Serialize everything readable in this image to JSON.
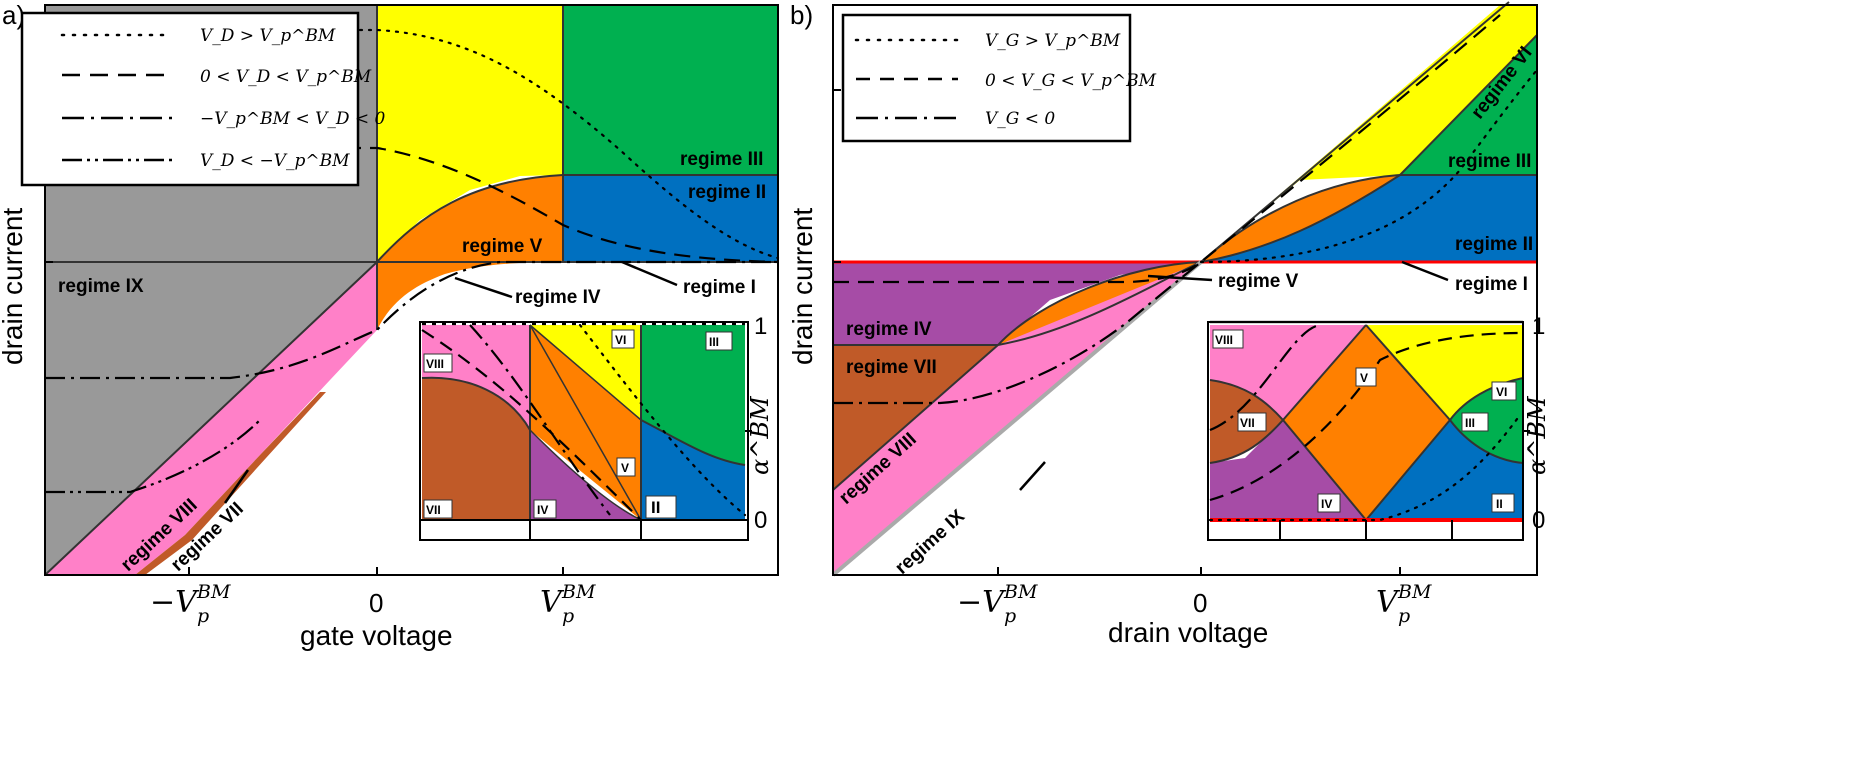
{
  "panels": {
    "a": {
      "letter": "a)",
      "xlabel": "gate voltage",
      "ylabel": "drain current",
      "xticks": [
        {
          "pre": "−V",
          "sub": "p",
          "sup": "BM"
        },
        {
          "pre": "0",
          "sub": "",
          "sup": ""
        },
        {
          "pre": "V",
          "sub": "p",
          "sup": "BM"
        }
      ],
      "legend": [
        {
          "style": "dotted",
          "label": "V_D > V_p^BM"
        },
        {
          "style": "dashed",
          "label": "0 < V_D < V_p^BM"
        },
        {
          "style": "dash-dot",
          "label": "−V_p^BM < V_D < 0"
        },
        {
          "style": "dash-dot-dot",
          "label": "V_D < −V_p^BM"
        }
      ],
      "regimes": {
        "r1": "regime I",
        "r2": "regime II",
        "r3": "regime III",
        "r4": "regime IV",
        "r5": "regime V",
        "r7": "regime VII",
        "r8": "regime VIII",
        "r9": "regime IX"
      },
      "inset": {
        "ylabel": "α^BM",
        "y_top": "1",
        "y_bottom": "0",
        "labels": {
          "viii": "VIII",
          "vi": "VI",
          "iii": "III",
          "v": "V",
          "vii": "VII",
          "iv": "IV",
          "ii": "II"
        }
      }
    },
    "b": {
      "letter": "b)",
      "xlabel": "drain voltage",
      "ylabel": "drain current",
      "xticks": [
        {
          "pre": "−V",
          "sub": "p",
          "sup": "BM"
        },
        {
          "pre": "0",
          "sub": "",
          "sup": ""
        },
        {
          "pre": "V",
          "sub": "p",
          "sup": "BM"
        }
      ],
      "legend": [
        {
          "style": "dotted",
          "label": "V_G > V_p^BM"
        },
        {
          "style": "dashed",
          "label": "0 < V_G < V_p^BM"
        },
        {
          "style": "dash-dot",
          "label": "V_G < 0"
        }
      ],
      "regimes": {
        "r1": "regime I",
        "r2": "regime II",
        "r3": "regime III",
        "r4": "regime IV",
        "r5": "regime V",
        "r6": "regime VI",
        "r7": "regime VII",
        "r8": "regime VIII",
        "r9": "regime IX"
      },
      "inset": {
        "ylabel": "α^BM",
        "y_top": "1",
        "y_bottom": "0",
        "labels": {
          "viii": "VIII",
          "v": "V",
          "vi": "VI",
          "vii": "VII",
          "iii": "III",
          "iv": "IV",
          "ii": "II"
        }
      }
    }
  },
  "colors": {
    "yellow": "#ffff00",
    "green": "#00b050",
    "blue": "#0070c0",
    "orange": "#ff8000",
    "gray": "#999999",
    "pink": "#ff80c8",
    "purple": "#a64ca6",
    "brown": "#c05a28",
    "red": "#ff0000"
  }
}
